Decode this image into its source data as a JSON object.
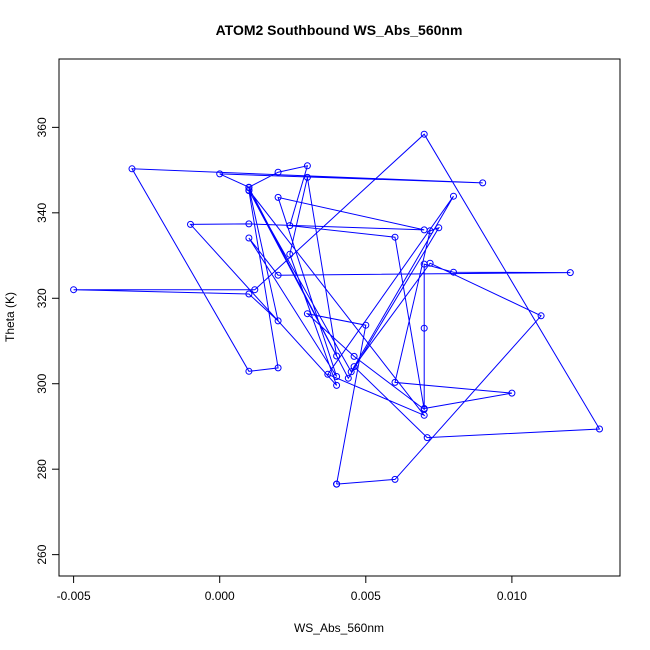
{
  "chart_data": {
    "type": "scatter",
    "title": "ATOM2 Southbound WS_Abs_560nm",
    "xlabel": "WS_Abs_560nm",
    "ylabel": "Theta (K)",
    "xlim": [
      -0.0055,
      0.0137
    ],
    "ylim": [
      255,
      376
    ],
    "x_ticks": [
      -0.005,
      0.0,
      0.005,
      0.01
    ],
    "x_tick_labels": [
      "-0.005",
      "0.000",
      "0.005",
      "0.010"
    ],
    "y_ticks": [
      260,
      280,
      300,
      320,
      340,
      360
    ],
    "y_tick_labels": [
      "260",
      "280",
      "300",
      "320",
      "340",
      "360"
    ],
    "grid": false,
    "connected": true,
    "color": "#0000ff",
    "series": [
      {
        "points": [
          {
            "x": 0.004,
            "y": 276.5
          },
          {
            "x": 0.006,
            "y": 277.6
          },
          {
            "x": 0.011,
            "y": 315.9
          },
          {
            "x": 0.0072,
            "y": 328.2
          },
          {
            "x": 0.0046,
            "y": 304.0
          },
          {
            "x": 0.0071,
            "y": 287.4
          },
          {
            "x": 0.013,
            "y": 289.4
          },
          {
            "x": 0.007,
            "y": 358.4
          },
          {
            "x": 0.0012,
            "y": 322.0
          },
          {
            "x": -0.005,
            "y": 322.0
          },
          {
            "x": 0.001,
            "y": 321.0
          },
          {
            "x": 0.002,
            "y": 314.7
          },
          {
            "x": 0.001,
            "y": 345.9
          },
          {
            "x": 0.0044,
            "y": 301.3
          },
          {
            "x": 0.0075,
            "y": 336.5
          },
          {
            "x": 0.0072,
            "y": 335.8
          },
          {
            "x": 0.006,
            "y": 300.3
          },
          {
            "x": 0.01,
            "y": 297.8
          },
          {
            "x": 0.007,
            "y": 294.2
          },
          {
            "x": 0.007,
            "y": 313.0
          },
          {
            "x": 0.007,
            "y": 328.0
          },
          {
            "x": 0.008,
            "y": 326.1
          },
          {
            "x": 0.012,
            "y": 326.0
          },
          {
            "x": 0.002,
            "y": 325.4
          },
          {
            "x": 0.001,
            "y": 334.1
          },
          {
            "x": 0.004,
            "y": 301.7
          },
          {
            "x": 0.002,
            "y": 343.6
          },
          {
            "x": 0.007,
            "y": 336.0
          },
          {
            "x": 0.001,
            "y": 337.4
          },
          {
            "x": -0.001,
            "y": 337.3
          },
          {
            "x": 0.004,
            "y": 299.6
          },
          {
            "x": 0.0024,
            "y": 330.3
          },
          {
            "x": 0.003,
            "y": 348.3
          },
          {
            "x": 0.004,
            "y": 306.5
          },
          {
            "x": 0.001,
            "y": 345.3
          },
          {
            "x": 0.007,
            "y": 292.6
          },
          {
            "x": 0.0037,
            "y": 302.2
          },
          {
            "x": 0.008,
            "y": 343.9
          },
          {
            "x": 0.0045,
            "y": 302.8
          },
          {
            "x": 0.001,
            "y": 345.2
          },
          {
            "x": 0.002,
            "y": 303.7
          },
          {
            "x": 0.001,
            "y": 302.9
          },
          {
            "x": -0.003,
            "y": 350.3
          },
          {
            "x": 0.009,
            "y": 347.0
          },
          {
            "x": 0.0,
            "y": 349.1
          },
          {
            "x": 0.001,
            "y": 346.0
          },
          {
            "x": 0.002,
            "y": 349.5
          },
          {
            "x": 0.003,
            "y": 351.0
          },
          {
            "x": 0.0024,
            "y": 337.0
          },
          {
            "x": 0.006,
            "y": 334.3
          },
          {
            "x": 0.007,
            "y": 294.0
          },
          {
            "x": 0.0046,
            "y": 306.4
          },
          {
            "x": 0.003,
            "y": 316.4
          },
          {
            "x": 0.005,
            "y": 313.7
          },
          {
            "x": 0.004,
            "y": 276.5
          }
        ]
      }
    ]
  }
}
